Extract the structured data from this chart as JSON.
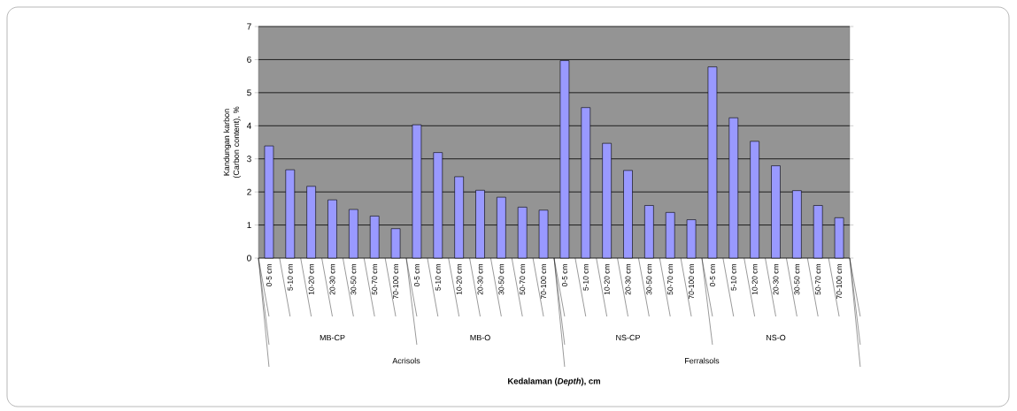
{
  "chart_data": {
    "type": "bar",
    "xlabel": "**Kedalaman (*Depth*), cm**",
    "ylabel": "Kandungan karbon (Carbon content), %",
    "categories": [
      "0-5 cm",
      "5-10 cm",
      "10-20 cm",
      "20-30 cm",
      "30-50 cm",
      "50-70 cm",
      "70-100 cm",
      "0-5 cm",
      "5-10 cm",
      "10-20 cm",
      "20-30 cm",
      "30-50 cm",
      "50-70 cm",
      "70-100 cm",
      "0-5 cm",
      "5-10 cm",
      "10-20 cm",
      "20-30 cm",
      "30-50 cm",
      "50-70 cm",
      "70-100 cm",
      "0-5 cm",
      "5-10 cm",
      "10-20 cm",
      "20-30 cm",
      "30-50 cm",
      "50-70 cm",
      "70-100 cm"
    ],
    "values": [
      3.39,
      2.67,
      2.17,
      1.76,
      1.47,
      1.27,
      0.89,
      4.03,
      3.19,
      2.46,
      2.05,
      1.84,
      1.54,
      1.45,
      5.97,
      4.55,
      3.47,
      2.65,
      1.59,
      1.38,
      1.16,
      5.78,
      4.24,
      3.53,
      2.79,
      2.04,
      1.59,
      1.22
    ],
    "color": "#9999ff",
    "annotations": [
      "MB-CP",
      "MB-O",
      "NS-CP",
      "NS-O",
      "Acrisols",
      "Ferralsols"
    ],
    "ylim": [
      0,
      7
    ],
    "yticks": [
      0,
      1,
      2,
      3,
      4,
      5,
      6,
      7
    ],
    "grid": "y"
  }
}
